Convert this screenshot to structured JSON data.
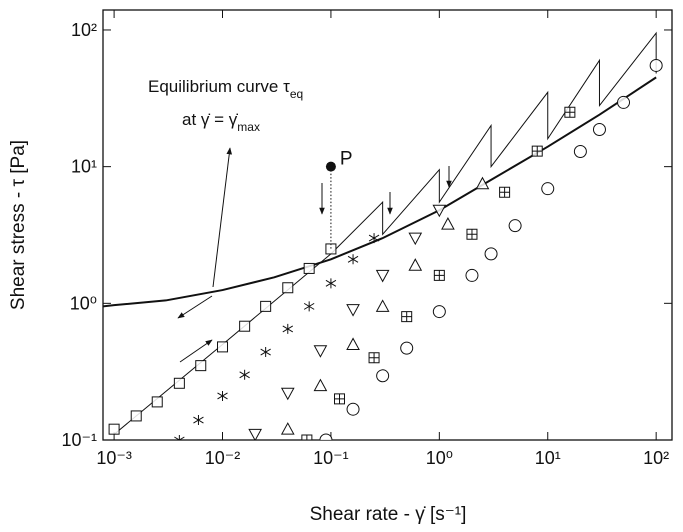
{
  "chart_data": {
    "type": "scatter",
    "x_label": "Shear rate - γ̇ [s⁻¹]",
    "y_label": "Shear stress - τ [Pa]",
    "xscale": "log",
    "yscale": "log",
    "xlim": [
      0.00079,
      140
    ],
    "ylim": [
      0.1,
      140
    ],
    "xticks": [
      {
        "value": 0.001,
        "label": "10⁻³"
      },
      {
        "value": 0.01,
        "label": "10⁻²"
      },
      {
        "value": 0.1,
        "label": "10⁻¹"
      },
      {
        "value": 1,
        "label": "10⁰"
      },
      {
        "value": 10,
        "label": "10¹"
      },
      {
        "value": 100,
        "label": "10²"
      }
    ],
    "yticks": [
      {
        "value": 0.1,
        "label": "10⁻¹"
      },
      {
        "value": 1,
        "label": "10⁰"
      },
      {
        "value": 10,
        "label": "10¹"
      },
      {
        "value": 100,
        "label": "10²"
      }
    ],
    "color": "#111111",
    "series": [
      {
        "marker": "line",
        "width": 2,
        "x": [
          0.00079,
          0.001,
          0.003,
          0.01,
          0.03,
          0.1,
          0.3,
          1,
          3,
          10,
          30,
          100
        ],
        "values": [
          0.95,
          0.97,
          1.05,
          1.25,
          1.55,
          2.1,
          3.0,
          4.8,
          8,
          14,
          24,
          45
        ]
      },
      {
        "marker": "line",
        "width": 1,
        "x": [
          0.001,
          0.01,
          0.1,
          0.3,
          0.3,
          1,
          1,
          3,
          3,
          10,
          10,
          30,
          30,
          100,
          100
        ],
        "values": [
          0.11,
          0.5,
          2.3,
          5.5,
          3.2,
          9.5,
          5.5,
          20,
          10,
          35,
          16,
          60,
          28,
          95,
          48
        ]
      },
      {
        "marker": "square",
        "x": [
          0.001,
          0.0016,
          0.0025,
          0.004,
          0.0063,
          0.01,
          0.016,
          0.025,
          0.04,
          0.063,
          0.1
        ],
        "values": [
          0.12,
          0.15,
          0.19,
          0.26,
          0.35,
          0.48,
          0.68,
          0.95,
          1.3,
          1.8,
          2.5
        ]
      },
      {
        "marker": "star",
        "x": [
          0.004,
          0.006,
          0.01,
          0.016,
          0.025,
          0.04,
          0.063,
          0.1,
          0.16,
          0.25
        ],
        "values": [
          0.1,
          0.14,
          0.21,
          0.3,
          0.44,
          0.65,
          0.95,
          1.4,
          2.1,
          3.0
        ]
      },
      {
        "marker": "triangle-down",
        "x": [
          0.02,
          0.04,
          0.08,
          0.16,
          0.3,
          0.6,
          1
        ],
        "values": [
          0.11,
          0.22,
          0.45,
          0.9,
          1.6,
          3,
          4.8
        ]
      },
      {
        "marker": "triangle-up",
        "x": [
          0.04,
          0.08,
          0.16,
          0.3,
          0.6,
          1.2,
          2.5
        ],
        "values": [
          0.12,
          0.25,
          0.5,
          0.95,
          1.9,
          3.8,
          7.5
        ]
      },
      {
        "marker": "crossed-square",
        "x": [
          0.06,
          0.12,
          0.25,
          0.5,
          1,
          2,
          4,
          8,
          16
        ],
        "values": [
          0.1,
          0.2,
          0.4,
          0.8,
          1.6,
          3.2,
          6.5,
          13,
          25
        ]
      },
      {
        "marker": "circle",
        "x": [
          0.09,
          0.16,
          0.3,
          0.5,
          1,
          2,
          3,
          5,
          10,
          20,
          30,
          50,
          100
        ],
        "values": [
          0.1,
          0.168,
          0.295,
          0.47,
          0.87,
          1.6,
          2.3,
          3.7,
          6.9,
          12.9,
          18.7,
          29.5,
          55
        ]
      }
    ],
    "point_p": {
      "label": "P",
      "x": 0.1,
      "y": 10
    },
    "annotations": [
      {
        "text": "Equilibrium curve τ",
        "sub": "eq"
      },
      {
        "text": "at γ̇ = γ̇",
        "sub": "max"
      }
    ]
  }
}
